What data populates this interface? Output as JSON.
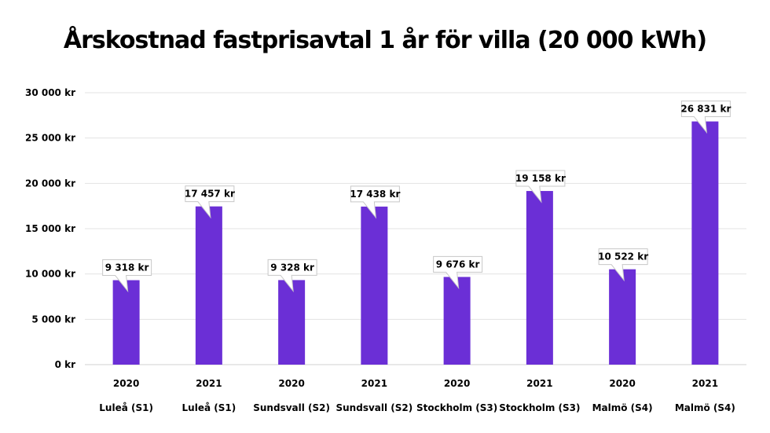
{
  "chart_data": {
    "type": "bar",
    "title": "Årskostnad fastprisavtal 1 år för villa (20 000 kWh)",
    "xlabel": "",
    "ylabel": "",
    "ylim": [
      0,
      30000
    ],
    "y_ticks": [
      {
        "value": 0,
        "label": "0 kr"
      },
      {
        "value": 5000,
        "label": "5 000 kr"
      },
      {
        "value": 10000,
        "label": "10 000 kr"
      },
      {
        "value": 15000,
        "label": "15 000 kr"
      },
      {
        "value": 20000,
        "label": "20 000 kr"
      },
      {
        "value": 25000,
        "label": "25 000 kr"
      },
      {
        "value": 30000,
        "label": "30 000 kr"
      }
    ],
    "categories": [
      {
        "year": "2020",
        "area": "Luleå (S1)"
      },
      {
        "year": "2021",
        "area": "Luleå (S1)"
      },
      {
        "year": "2020",
        "area": "Sundsvall (S2)"
      },
      {
        "year": "2021",
        "area": "Sundsvall (S2)"
      },
      {
        "year": "2020",
        "area": "Stockholm (S3)"
      },
      {
        "year": "2021",
        "area": "Stockholm (S3)"
      },
      {
        "year": "2020",
        "area": "Malmö (S4)"
      },
      {
        "year": "2021",
        "area": "Malmö (S4)"
      }
    ],
    "values": [
      9318,
      17457,
      9328,
      17438,
      9676,
      19158,
      10522,
      26831
    ],
    "data_labels": [
      "9 318 kr",
      "17 457 kr",
      "9 328 kr",
      "17 438 kr",
      "9 676 kr",
      "19 158 kr",
      "10 522 kr",
      "26 831 kr"
    ],
    "colors": {
      "bar": "#6b2fd6",
      "grid": "#e3e3e3",
      "axis": "#d0d0d0",
      "callout_border": "#c8c8c8"
    },
    "grid": true,
    "legend": "none"
  }
}
